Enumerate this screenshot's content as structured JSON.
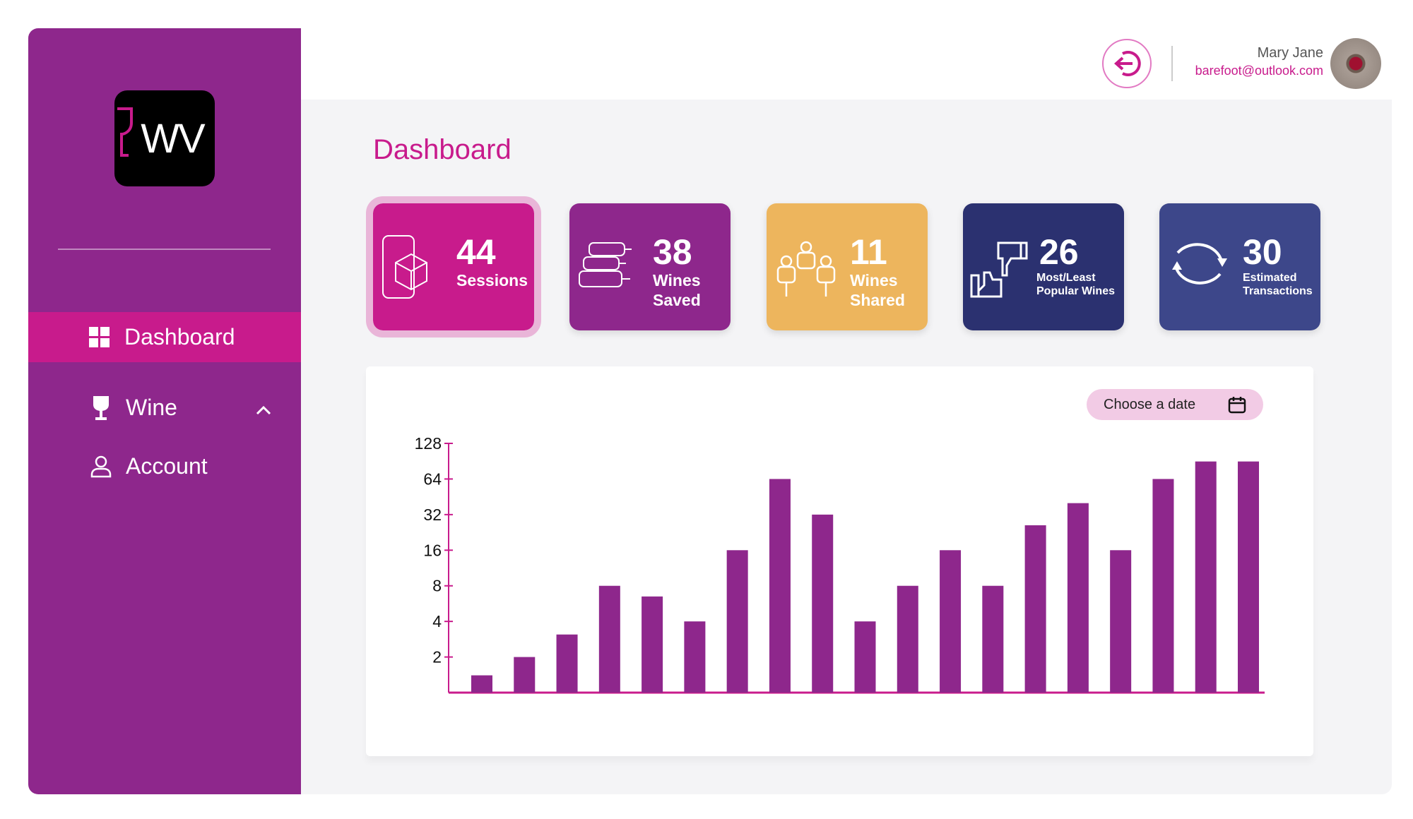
{
  "sidebar": {
    "logo_text": "WV",
    "items": [
      {
        "label": "Dashboard",
        "icon": "grid-icon",
        "active": true
      },
      {
        "label": "Wine",
        "icon": "wine-glass-icon",
        "expanded": true
      },
      {
        "label": "Account",
        "icon": "user-icon"
      }
    ]
  },
  "header": {
    "user_name": "Mary Jane",
    "user_email": "barefoot@outlook.com",
    "logout_icon": "logout-icon"
  },
  "main": {
    "title": "Dashboard",
    "cards": [
      {
        "value": "44",
        "label": "Sessions",
        "icon": "phone-box-icon",
        "color": "#c81b8c"
      },
      {
        "value": "38",
        "label": "Wines Saved",
        "icon": "bottles-icon",
        "color": "#8e278c"
      },
      {
        "value": "11",
        "label": "Wines Shared",
        "icon": "people-icon",
        "color": "#edb55d"
      },
      {
        "value": "26",
        "label": "Most/Least Popular Wines",
        "icon": "thumbs-icon",
        "color": "#2b3170"
      },
      {
        "value": "30",
        "label": "Estimated Transactions",
        "icon": "refresh-icon",
        "color": "#3d478a"
      }
    ],
    "date_button": "Choose a date"
  },
  "chart_data": {
    "type": "bar",
    "scale": "log2",
    "ylim": [
      1,
      128
    ],
    "yticks": [
      2,
      4,
      8,
      16,
      32,
      64,
      128
    ],
    "values": [
      1.4,
      2,
      3.1,
      8,
      6.5,
      4,
      16,
      64,
      32,
      4,
      8,
      16,
      8,
      26,
      40,
      16,
      64,
      90,
      90
    ],
    "bar_color": "#8e278c",
    "axis_color": "#c81b8c",
    "grid": false
  }
}
